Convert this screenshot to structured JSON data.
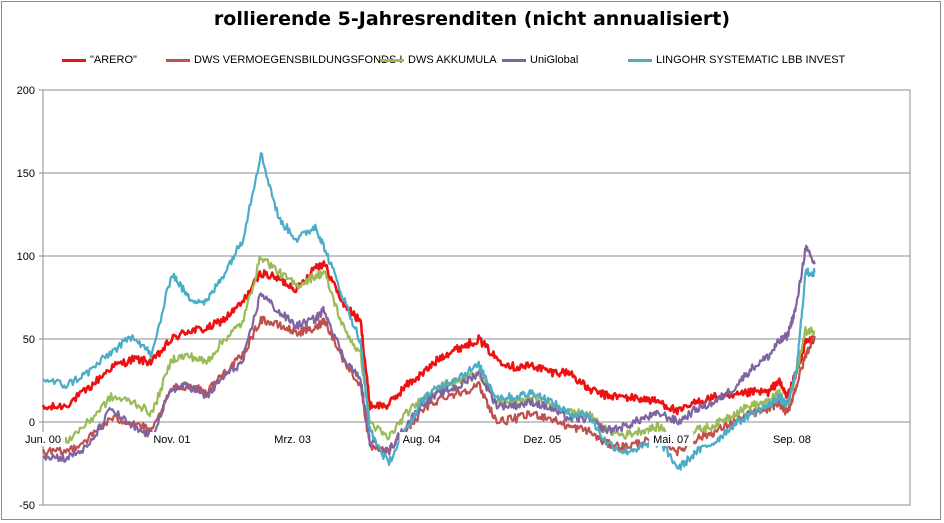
{
  "chart_data": {
    "type": "line",
    "title": "rollierende 5-Jahresrenditen (nicht annualisiert)",
    "xlabel": "",
    "ylabel": "",
    "ylim": [
      -50,
      200
    ],
    "yticks": [
      -50,
      0,
      50,
      100,
      150,
      200
    ],
    "xticks": [
      {
        "t": 0.0,
        "label": "Jun. 00"
      },
      {
        "t": 1.42,
        "label": "Nov. 01"
      },
      {
        "t": 2.75,
        "label": "Mrz. 03"
      },
      {
        "t": 4.17,
        "label": "Aug. 04"
      },
      {
        "t": 5.5,
        "label": "Dez. 05"
      },
      {
        "t": 6.92,
        "label": "Mai. 07"
      },
      {
        "t": 8.25,
        "label": "Sep. 08"
      }
    ],
    "xlim": [
      0,
      9.0
    ],
    "grid": "horizontal",
    "legend_position": "top",
    "series": [
      {
        "name": "\"ARERO\"",
        "color": "#ee1111",
        "points": [
          [
            0,
            8
          ],
          [
            0.25,
            10
          ],
          [
            0.5,
            20
          ],
          [
            0.75,
            33
          ],
          [
            1.0,
            38
          ],
          [
            1.2,
            36
          ],
          [
            1.42,
            50
          ],
          [
            1.6,
            55
          ],
          [
            1.8,
            56
          ],
          [
            2.0,
            62
          ],
          [
            2.2,
            72
          ],
          [
            2.4,
            90
          ],
          [
            2.6,
            86
          ],
          [
            2.8,
            80
          ],
          [
            3.0,
            94
          ],
          [
            3.1,
            95
          ],
          [
            3.3,
            72
          ],
          [
            3.5,
            60
          ],
          [
            3.6,
            10
          ],
          [
            3.8,
            10
          ],
          [
            4.0,
            22
          ],
          [
            4.2,
            30
          ],
          [
            4.4,
            40
          ],
          [
            4.6,
            45
          ],
          [
            4.8,
            50
          ],
          [
            5.0,
            38
          ],
          [
            5.2,
            33
          ],
          [
            5.4,
            34
          ],
          [
            5.6,
            30
          ],
          [
            5.8,
            30
          ],
          [
            6.0,
            20
          ],
          [
            6.2,
            16
          ],
          [
            6.4,
            15
          ],
          [
            6.6,
            14
          ],
          [
            6.8,
            12
          ],
          [
            7.0,
            6
          ],
          [
            7.2,
            12
          ],
          [
            7.4,
            15
          ],
          [
            7.6,
            15
          ],
          [
            7.8,
            18
          ],
          [
            8.0,
            18
          ],
          [
            8.1,
            25
          ],
          [
            8.2,
            15
          ],
          [
            8.3,
            30
          ],
          [
            8.4,
            48
          ],
          [
            8.5,
            50
          ]
        ]
      },
      {
        "name": "DWS VERMOEGENSBILDUNGSFONDS  I",
        "color": "#c0504d",
        "points": [
          [
            0,
            -18
          ],
          [
            0.25,
            -18
          ],
          [
            0.5,
            -10
          ],
          [
            0.75,
            2
          ],
          [
            1.0,
            0
          ],
          [
            1.2,
            -6
          ],
          [
            1.42,
            20
          ],
          [
            1.6,
            22
          ],
          [
            1.8,
            18
          ],
          [
            2.0,
            30
          ],
          [
            2.2,
            40
          ],
          [
            2.4,
            62
          ],
          [
            2.6,
            58
          ],
          [
            2.8,
            54
          ],
          [
            3.0,
            56
          ],
          [
            3.1,
            62
          ],
          [
            3.3,
            38
          ],
          [
            3.5,
            22
          ],
          [
            3.6,
            -15
          ],
          [
            3.8,
            -18
          ],
          [
            4.0,
            -5
          ],
          [
            4.2,
            8
          ],
          [
            4.4,
            15
          ],
          [
            4.6,
            18
          ],
          [
            4.8,
            22
          ],
          [
            5.0,
            0
          ],
          [
            5.2,
            2
          ],
          [
            5.4,
            5
          ],
          [
            5.6,
            2
          ],
          [
            5.8,
            -3
          ],
          [
            6.0,
            -5
          ],
          [
            6.2,
            -13
          ],
          [
            6.4,
            -15
          ],
          [
            6.6,
            -12
          ],
          [
            6.8,
            -10
          ],
          [
            7.0,
            -18
          ],
          [
            7.2,
            -10
          ],
          [
            7.4,
            -6
          ],
          [
            7.6,
            0
          ],
          [
            7.8,
            5
          ],
          [
            8.0,
            8
          ],
          [
            8.1,
            12
          ],
          [
            8.2,
            5
          ],
          [
            8.3,
            22
          ],
          [
            8.4,
            40
          ],
          [
            8.5,
            52
          ]
        ]
      },
      {
        "name": "DWS AKKUMULA",
        "color": "#9bbb59",
        "points": [
          [
            0,
            -10
          ],
          [
            0.25,
            -12
          ],
          [
            0.5,
            0
          ],
          [
            0.75,
            15
          ],
          [
            1.0,
            12
          ],
          [
            1.2,
            5
          ],
          [
            1.42,
            38
          ],
          [
            1.6,
            40
          ],
          [
            1.8,
            36
          ],
          [
            2.0,
            50
          ],
          [
            2.2,
            60
          ],
          [
            2.4,
            100
          ],
          [
            2.6,
            90
          ],
          [
            2.8,
            82
          ],
          [
            3.0,
            88
          ],
          [
            3.1,
            90
          ],
          [
            3.3,
            58
          ],
          [
            3.5,
            40
          ],
          [
            3.6,
            0
          ],
          [
            3.8,
            -10
          ],
          [
            4.0,
            5
          ],
          [
            4.2,
            15
          ],
          [
            4.4,
            22
          ],
          [
            4.6,
            25
          ],
          [
            4.8,
            30
          ],
          [
            5.0,
            12
          ],
          [
            5.2,
            12
          ],
          [
            5.4,
            15
          ],
          [
            5.6,
            10
          ],
          [
            5.8,
            6
          ],
          [
            6.0,
            5
          ],
          [
            6.2,
            -5
          ],
          [
            6.4,
            -8
          ],
          [
            6.6,
            -5
          ],
          [
            6.8,
            -3
          ],
          [
            7.0,
            -12
          ],
          [
            7.2,
            -5
          ],
          [
            7.4,
            -2
          ],
          [
            7.6,
            5
          ],
          [
            7.8,
            10
          ],
          [
            8.0,
            12
          ],
          [
            8.1,
            18
          ],
          [
            8.2,
            10
          ],
          [
            8.3,
            30
          ],
          [
            8.4,
            55
          ],
          [
            8.5,
            55
          ]
        ]
      },
      {
        "name": "UniGlobal",
        "color": "#8064a2",
        "points": [
          [
            0,
            -20
          ],
          [
            0.25,
            -22
          ],
          [
            0.5,
            -15
          ],
          [
            0.75,
            8
          ],
          [
            1.0,
            -4
          ],
          [
            1.2,
            -8
          ],
          [
            1.42,
            20
          ],
          [
            1.6,
            22
          ],
          [
            1.8,
            15
          ],
          [
            2.0,
            28
          ],
          [
            2.2,
            36
          ],
          [
            2.4,
            78
          ],
          [
            2.6,
            66
          ],
          [
            2.8,
            58
          ],
          [
            3.0,
            62
          ],
          [
            3.1,
            68
          ],
          [
            3.3,
            40
          ],
          [
            3.5,
            25
          ],
          [
            3.6,
            -12
          ],
          [
            3.8,
            -18
          ],
          [
            4.0,
            -2
          ],
          [
            4.2,
            12
          ],
          [
            4.4,
            18
          ],
          [
            4.6,
            22
          ],
          [
            4.8,
            30
          ],
          [
            5.0,
            10
          ],
          [
            5.2,
            10
          ],
          [
            5.4,
            12
          ],
          [
            5.6,
            8
          ],
          [
            5.8,
            2
          ],
          [
            6.0,
            2
          ],
          [
            6.2,
            -5
          ],
          [
            6.4,
            -3
          ],
          [
            6.6,
            2
          ],
          [
            6.8,
            5
          ],
          [
            7.0,
            0
          ],
          [
            7.2,
            8
          ],
          [
            7.4,
            12
          ],
          [
            7.6,
            20
          ],
          [
            7.8,
            32
          ],
          [
            8.0,
            40
          ],
          [
            8.1,
            48
          ],
          [
            8.2,
            52
          ],
          [
            8.3,
            70
          ],
          [
            8.4,
            105
          ],
          [
            8.5,
            95
          ]
        ]
      },
      {
        "name": "LINGOHR SYSTEMATIC  LBB INVEST",
        "color": "#4bacc6",
        "points": [
          [
            0,
            26
          ],
          [
            0.25,
            22
          ],
          [
            0.5,
            30
          ],
          [
            0.75,
            42
          ],
          [
            1.0,
            52
          ],
          [
            1.2,
            40
          ],
          [
            1.42,
            90
          ],
          [
            1.6,
            75
          ],
          [
            1.8,
            72
          ],
          [
            2.0,
            90
          ],
          [
            2.2,
            110
          ],
          [
            2.4,
            162
          ],
          [
            2.6,
            122
          ],
          [
            2.8,
            110
          ],
          [
            3.0,
            118
          ],
          [
            3.1,
            105
          ],
          [
            3.3,
            76
          ],
          [
            3.5,
            48
          ],
          [
            3.6,
            -5
          ],
          [
            3.8,
            -25
          ],
          [
            4.0,
            -5
          ],
          [
            4.2,
            15
          ],
          [
            4.4,
            22
          ],
          [
            4.6,
            28
          ],
          [
            4.8,
            34
          ],
          [
            5.0,
            15
          ],
          [
            5.2,
            15
          ],
          [
            5.4,
            18
          ],
          [
            5.6,
            12
          ],
          [
            5.8,
            5
          ],
          [
            6.0,
            5
          ],
          [
            6.2,
            -12
          ],
          [
            6.4,
            -18
          ],
          [
            6.6,
            -15
          ],
          [
            6.8,
            -12
          ],
          [
            7.0,
            -28
          ],
          [
            7.2,
            -18
          ],
          [
            7.4,
            -12
          ],
          [
            7.6,
            -2
          ],
          [
            7.8,
            5
          ],
          [
            8.0,
            10
          ],
          [
            8.1,
            15
          ],
          [
            8.2,
            10
          ],
          [
            8.3,
            30
          ],
          [
            8.4,
            90
          ],
          [
            8.5,
            90
          ]
        ]
      }
    ]
  }
}
